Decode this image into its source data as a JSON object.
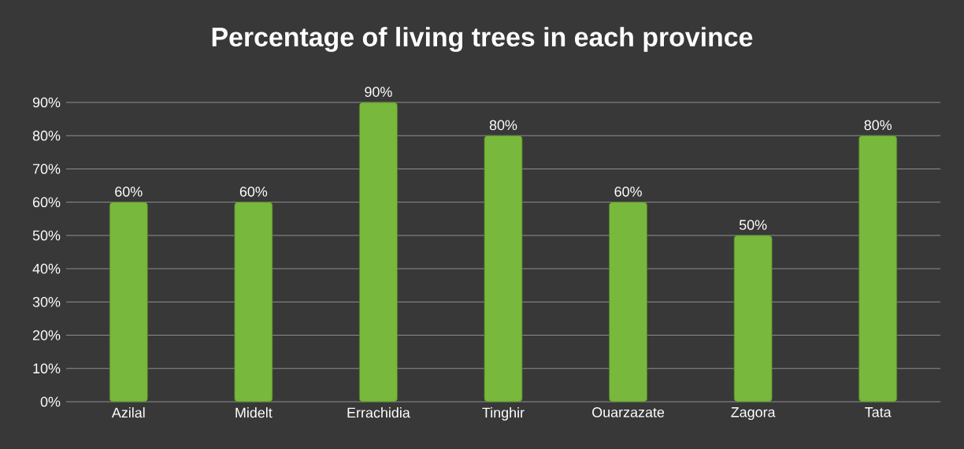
{
  "chart_data": {
    "type": "bar",
    "title": "Percentage of living trees in each province",
    "categories": [
      "Azilal",
      "Midelt",
      "Errachidia",
      "Tinghir",
      "Ouarzazate",
      "Zagora",
      "Tata"
    ],
    "values": [
      60,
      60,
      90,
      80,
      60,
      50,
      80
    ],
    "value_labels": [
      "60%",
      "60%",
      "90%",
      "80%",
      "60%",
      "50%",
      "80%"
    ],
    "color": "#78b83c",
    "ylim": [
      0,
      90
    ],
    "yticks": [
      {
        "value": 0,
        "label": "0%"
      },
      {
        "value": 10,
        "label": "10%"
      },
      {
        "value": 20,
        "label": "20%"
      },
      {
        "value": 30,
        "label": "30%"
      },
      {
        "value": 40,
        "label": "40%"
      },
      {
        "value": 50,
        "label": "50%"
      },
      {
        "value": 60,
        "label": "60%"
      },
      {
        "value": 70,
        "label": "70%"
      },
      {
        "value": 80,
        "label": "80%"
      },
      {
        "value": 90,
        "label": "90%"
      }
    ],
    "grid": "y"
  }
}
